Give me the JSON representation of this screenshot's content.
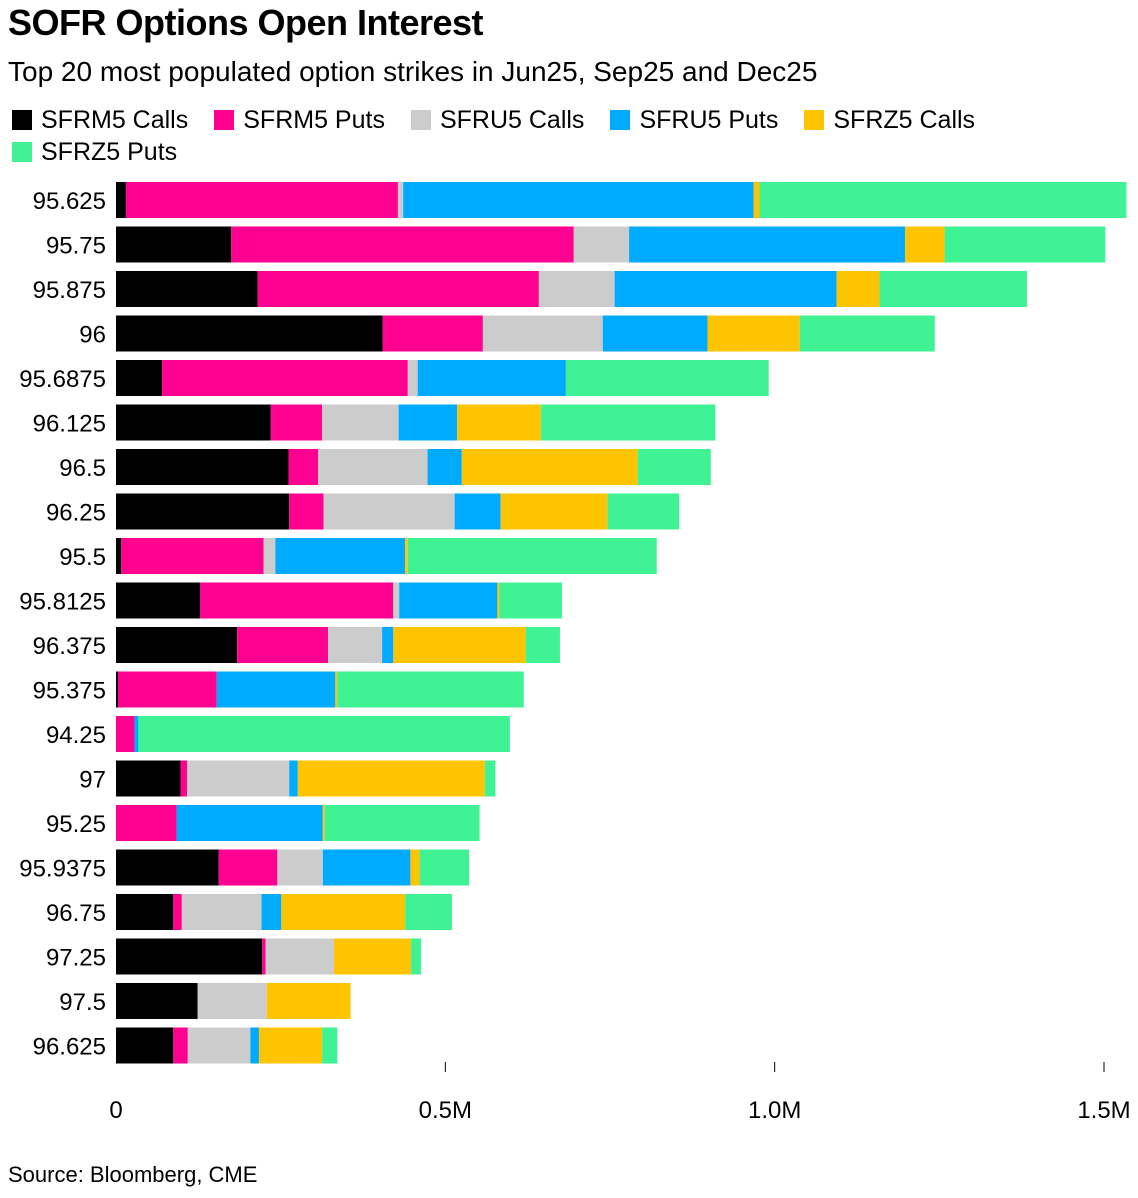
{
  "title": "SOFR Options Open Interest",
  "subtitle": "Top 20 most populated option strikes in Jun25, Sep25 and Dec25",
  "source": "Source: Bloomberg, CME",
  "chart_data": {
    "type": "bar",
    "orientation": "horizontal",
    "stacked": true,
    "title": "SOFR Options Open Interest",
    "xlabel": "",
    "ylabel": "",
    "xlim": [
      0,
      1500000
    ],
    "xticks": [
      0,
      500000,
      1000000,
      1500000
    ],
    "xtick_labels": [
      "0",
      "0.5M",
      "1.0M",
      "1.5M"
    ],
    "legend_position": "top",
    "categories": [
      "95.625",
      "95.75",
      "95.875",
      "96",
      "95.6875",
      "96.125",
      "96.5",
      "96.25",
      "95.5",
      "95.8125",
      "96.375",
      "95.375",
      "94.25",
      "97",
      "95.25",
      "95.9375",
      "96.75",
      "97.25",
      "97.5",
      "96.625"
    ],
    "series": [
      {
        "name": "SFRM5 Calls",
        "color": "#000000",
        "values": [
          15000,
          175000,
          215000,
          405000,
          70000,
          235000,
          262000,
          263000,
          8000,
          128000,
          184000,
          3000,
          0,
          98000,
          0,
          156000,
          87000,
          222000,
          124000,
          87000
        ]
      },
      {
        "name": "SFRM5 Puts",
        "color": "#ff0090",
        "values": [
          413000,
          520000,
          427000,
          152000,
          373000,
          78000,
          45000,
          52000,
          216000,
          293000,
          138000,
          150000,
          28000,
          10000,
          92000,
          89000,
          13000,
          5000,
          0,
          22000
        ]
      },
      {
        "name": "SFRU5 Calls",
        "color": "#cccccc",
        "values": [
          8000,
          84000,
          115000,
          182000,
          15000,
          116000,
          166000,
          199000,
          18000,
          9000,
          82000,
          0,
          0,
          155000,
          0,
          69000,
          121000,
          104000,
          105000,
          95000
        ]
      },
      {
        "name": "SFRU5 Puts",
        "color": "#00aaff",
        "values": [
          532000,
          419000,
          337000,
          159000,
          225000,
          89000,
          52000,
          70000,
          197000,
          149000,
          17000,
          180000,
          6000,
          13000,
          222000,
          133000,
          30000,
          0,
          0,
          13000
        ]
      },
      {
        "name": "SFRZ5 Calls",
        "color": "#ffc400",
        "values": [
          9000,
          60000,
          65000,
          140000,
          0,
          127000,
          267000,
          162000,
          4000,
          3000,
          201000,
          3000,
          0,
          284000,
          3000,
          14000,
          188000,
          117000,
          127000,
          96000
        ]
      },
      {
        "name": "SFRZ5 Puts",
        "color": "#3ff294",
        "values": [
          557000,
          244000,
          224000,
          205000,
          308000,
          265000,
          111000,
          109000,
          378000,
          95000,
          52000,
          283000,
          564000,
          16000,
          235000,
          75000,
          71000,
          15000,
          0,
          23000
        ]
      }
    ]
  }
}
